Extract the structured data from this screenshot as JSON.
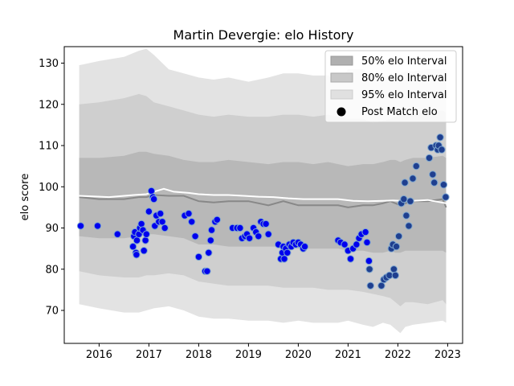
{
  "chart_data": {
    "type": "scatter",
    "title": "Martin Devergie: elo History",
    "xlabel": "",
    "ylabel": "elo score",
    "xlim": [
      2015.3,
      2023.3
    ],
    "ylim": [
      62,
      134
    ],
    "x_ticks": [
      {
        "value": 2016,
        "label": "2016"
      },
      {
        "value": 2017,
        "label": "2017"
      },
      {
        "value": 2018,
        "label": "2018"
      },
      {
        "value": 2019,
        "label": "2019"
      },
      {
        "value": 2020,
        "label": "2020"
      },
      {
        "value": 2021,
        "label": "2021"
      },
      {
        "value": 2022,
        "label": "2022"
      },
      {
        "value": 2023,
        "label": "2023"
      }
    ],
    "y_ticks": [
      {
        "value": 70,
        "label": "70"
      },
      {
        "value": 80,
        "label": "80"
      },
      {
        "value": 90,
        "label": "90"
      },
      {
        "value": 100,
        "label": "100"
      },
      {
        "value": 110,
        "label": "110"
      },
      {
        "value": 120,
        "label": "120"
      },
      {
        "value": 130,
        "label": "130"
      }
    ],
    "grid": false,
    "legend_position": "top-right",
    "legend": [
      {
        "label": "50% elo Interval",
        "kind": "band",
        "color": "#b0b0b0"
      },
      {
        "label": "80% elo Interval",
        "kind": "band",
        "color": "#c8c8c8"
      },
      {
        "label": "95% elo Interval",
        "kind": "band",
        "color": "#e0e0e0"
      },
      {
        "label": "Post Match elo",
        "kind": "marker",
        "color": "#000000"
      }
    ],
    "colors": {
      "band95": "#e3e3e3",
      "band80": "#cfcfcf",
      "band50": "#b8b8b8",
      "mean_line": "#888888",
      "white_line": "#ffffff",
      "point_fill_early": "#0000ee",
      "point_fill_late": "#1f3f8f",
      "point_edge": "#7fa8d0"
    },
    "bands": {
      "x": [
        2015.6,
        2016.0,
        2016.5,
        2016.8,
        2016.95,
        2017.1,
        2017.4,
        2017.7,
        2018.0,
        2018.3,
        2018.6,
        2019.0,
        2019.4,
        2019.7,
        2020.0,
        2020.3,
        2020.6,
        2020.8,
        2021.0,
        2021.3,
        2021.5,
        2021.7,
        2021.85,
        2021.95,
        2022.05,
        2022.15,
        2022.3,
        2022.6,
        2022.9,
        2022.97
      ],
      "p95_upper": [
        129.5,
        130.5,
        131.5,
        133.0,
        133.5,
        132.0,
        128.5,
        127.5,
        126.5,
        126.0,
        126.5,
        125.5,
        126.5,
        127.5,
        127.5,
        127.0,
        127.0,
        125.5,
        128.5,
        128.5,
        126.5,
        126.0,
        126.0,
        127.0,
        127.5,
        128.0,
        128.0,
        128.5,
        128.5,
        128.5
      ],
      "p80_upper": [
        120.0,
        120.5,
        121.5,
        122.5,
        122.0,
        120.5,
        119.5,
        118.5,
        117.5,
        117.0,
        117.5,
        117.0,
        117.0,
        117.5,
        117.5,
        117.0,
        117.5,
        117.0,
        116.5,
        116.5,
        115.5,
        116.0,
        116.5,
        117.0,
        117.5,
        117.5,
        118.0,
        118.0,
        118.5,
        118.0
      ],
      "p50_upper": [
        107.0,
        107.0,
        107.5,
        108.5,
        108.5,
        108.0,
        107.5,
        106.5,
        106.0,
        106.0,
        106.5,
        106.0,
        105.5,
        106.0,
        106.0,
        105.5,
        106.0,
        105.5,
        105.0,
        105.5,
        105.5,
        106.0,
        106.5,
        106.5,
        106.0,
        106.5,
        107.0,
        107.0,
        107.5,
        107.0
      ],
      "mean": [
        97.5,
        97.0,
        97.0,
        97.5,
        97.5,
        98.0,
        97.8,
        97.8,
        96.5,
        96.2,
        96.5,
        96.5,
        95.5,
        96.5,
        95.5,
        95.5,
        95.5,
        95.5,
        95.0,
        95.5,
        95.5,
        96.0,
        96.5,
        96.0,
        95.5,
        96.0,
        96.5,
        96.5,
        97.0,
        95.0
      ],
      "p50_lower": [
        88.0,
        87.5,
        87.5,
        88.0,
        88.5,
        88.5,
        88.0,
        87.5,
        86.0,
        86.0,
        85.5,
        85.5,
        85.5,
        85.5,
        85.0,
        85.0,
        85.0,
        85.0,
        84.5,
        84.5,
        84.0,
        84.0,
        84.5,
        84.0,
        84.0,
        84.5,
        84.5,
        84.5,
        84.5,
        84.0
      ],
      "p80_lower": [
        79.5,
        78.5,
        78.0,
        78.0,
        78.5,
        78.5,
        79.0,
        78.5,
        77.0,
        76.5,
        76.0,
        76.0,
        76.0,
        75.5,
        75.5,
        75.5,
        75.0,
        75.0,
        75.0,
        74.5,
        74.0,
        73.5,
        73.0,
        72.0,
        71.0,
        72.0,
        72.0,
        71.5,
        72.5,
        71.5
      ],
      "p95_lower": [
        71.5,
        70.5,
        69.5,
        69.5,
        70.0,
        70.5,
        71.0,
        70.0,
        68.5,
        68.0,
        68.0,
        67.5,
        67.5,
        67.0,
        67.5,
        67.0,
        67.0,
        67.0,
        67.5,
        66.5,
        66.0,
        67.0,
        66.5,
        65.5,
        64.5,
        66.0,
        66.5,
        67.0,
        67.5,
        67.0
      ]
    },
    "white_line": {
      "x": [
        2015.6,
        2016.2,
        2016.7,
        2016.95,
        2017.1,
        2017.3,
        2017.5,
        2017.8,
        2018.0,
        2018.3,
        2018.6,
        2018.9,
        2019.2,
        2019.5,
        2019.8,
        2020.1,
        2020.4,
        2020.8,
        2021.1,
        2021.4,
        2021.7,
        2021.9,
        2022.1,
        2022.3,
        2022.6,
        2022.97
      ],
      "y": [
        97.8,
        97.5,
        98.0,
        98.2,
        98.8,
        99.5,
        98.8,
        98.5,
        98.2,
        98.0,
        98.0,
        97.8,
        97.6,
        97.5,
        97.2,
        97.0,
        97.0,
        97.0,
        96.6,
        96.5,
        96.6,
        96.7,
        96.6,
        96.6,
        96.8,
        96.0
      ]
    },
    "points_group_1": {
      "x": [
        2015.63,
        2015.97,
        2016.37,
        2016.68,
        2016.7,
        2016.72,
        2016.74,
        2016.75,
        2016.76,
        2016.8,
        2016.82,
        2016.85,
        2016.88,
        2016.9,
        2016.93,
        2016.95,
        2017.0,
        2017.05,
        2017.08,
        2017.1,
        2017.12,
        2017.15,
        2017.2,
        2017.23,
        2017.27,
        2017.32
      ],
      "y": [
        90.5,
        90.5,
        88.5,
        85.5,
        88.0,
        89.0,
        84.0,
        83.5,
        87.0,
        88.5,
        90.0,
        91.0,
        89.5,
        84.5,
        87.0,
        88.5,
        94.0,
        99.0,
        97.5,
        97.0,
        90.5,
        93.0,
        91.5,
        93.5,
        91.5,
        90.0
      ]
    },
    "points_group_2": {
      "x": [
        2017.72,
        2017.8,
        2017.86,
        2017.93,
        2018.0,
        2018.13,
        2018.17,
        2018.2,
        2018.24,
        2018.26,
        2018.33,
        2018.37,
        2018.68,
        2018.77,
        2018.83,
        2018.87,
        2018.93,
        2018.97,
        2019.02,
        2019.1,
        2019.15,
        2019.2,
        2019.25,
        2019.3,
        2019.35,
        2019.4,
        2019.6,
        2019.65,
        2019.68,
        2019.7,
        2019.72,
        2019.75,
        2019.78,
        2019.82,
        2019.86,
        2019.9,
        2019.95,
        2020.0,
        2020.05,
        2020.1,
        2020.13,
        2020.8,
        2020.85,
        2020.93,
        2021.0,
        2021.05,
        2021.1,
        2021.17,
        2021.22,
        2021.27,
        2021.35,
        2021.38,
        2021.42
      ],
      "y": [
        93.0,
        93.5,
        91.5,
        88.0,
        83.0,
        79.5,
        79.5,
        84.0,
        87.0,
        89.5,
        91.5,
        92.0,
        90.0,
        90.0,
        90.0,
        87.5,
        88.0,
        88.5,
        87.5,
        90.0,
        89.0,
        88.0,
        91.5,
        91.0,
        91.0,
        88.5,
        86.0,
        82.5,
        84.0,
        85.5,
        82.5,
        85.0,
        84.0,
        86.0,
        85.5,
        86.5,
        86.0,
        86.5,
        86.0,
        85.0,
        85.5,
        87.0,
        86.5,
        86.0,
        84.5,
        82.5,
        85.0,
        86.0,
        87.5,
        88.5,
        89.0,
        86.5,
        82.0
      ]
    },
    "points_group_3": {
      "x": [
        2021.43,
        2021.45,
        2021.67,
        2021.72,
        2021.77,
        2021.83,
        2021.87,
        2021.9,
        2021.92,
        2021.95,
        2021.97,
        2022.02,
        2022.07,
        2022.12,
        2022.14,
        2022.17,
        2022.22,
        2022.25,
        2022.3,
        2022.37,
        2022.63,
        2022.67,
        2022.7,
        2022.73,
        2022.77,
        2022.8,
        2022.82,
        2022.85,
        2022.88,
        2022.92,
        2022.96
      ],
      "y": [
        80.0,
        76.0,
        76.0,
        77.5,
        78.0,
        78.5,
        85.0,
        86.0,
        80.0,
        78.5,
        85.5,
        88.0,
        96.0,
        97.0,
        101.0,
        93.0,
        90.5,
        96.5,
        102.0,
        105.0,
        107.0,
        109.5,
        103.0,
        101.0,
        110.0,
        109.0,
        110.0,
        112.0,
        109.0,
        100.5,
        97.5
      ]
    }
  }
}
